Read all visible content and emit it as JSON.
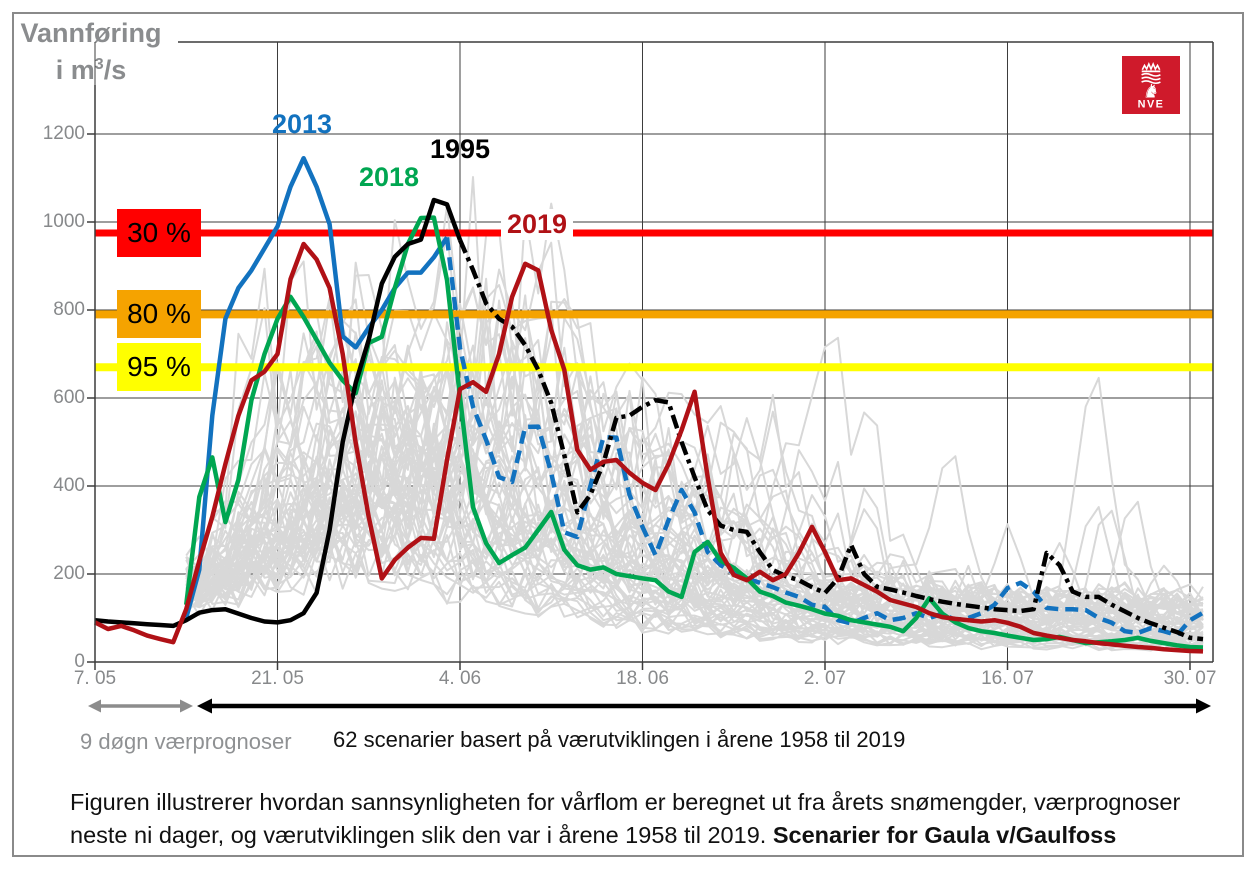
{
  "title": {
    "line1": "Vannføring",
    "unit_pre": "i m",
    "unit_sup": "3",
    "unit_post": "/s",
    "color": "#8a8c8e"
  },
  "logo": {
    "label": "NVE",
    "bg": "#cf1a2b"
  },
  "chart_data": {
    "type": "line",
    "ylabel": "Vannføring i m3/s",
    "x_axis": {
      "tick_labels": [
        "7. 05",
        "21. 05",
        "4. 06",
        "18. 06",
        "2. 07",
        "16. 07",
        "30. 07"
      ],
      "tick_days": [
        0,
        14,
        28,
        42,
        56,
        70,
        84
      ],
      "day_span": [
        0,
        85
      ]
    },
    "y_axis": {
      "ticks": [
        0,
        200,
        400,
        600,
        800,
        1000,
        1200
      ],
      "range": [
        0,
        1270
      ]
    },
    "grid": true,
    "thresholds": [
      {
        "label": "30 %",
        "value": 975,
        "color": "#ff0000",
        "width": 7
      },
      {
        "label": "80 %",
        "value": 790,
        "color": "#f5a300",
        "width": 8
      },
      {
        "label": "95 %",
        "value": 670,
        "color": "#ffff00",
        "width": 8
      }
    ],
    "series": [
      {
        "name": "2013",
        "color": "#1272bf",
        "style": "solid-then-dashed",
        "dash_from": 27,
        "dash": "13 7",
        "values": [
          null,
          null,
          null,
          null,
          null,
          null,
          null,
          100,
          210,
          560,
          780,
          850,
          890,
          940,
          990,
          1080,
          1145,
          1080,
          995,
          740,
          715,
          760,
          800,
          850,
          885,
          885,
          920,
          965,
          714,
          580,
          505,
          420,
          409,
          534,
          535,
          430,
          295,
          284,
          400,
          511,
          510,
          380,
          307,
          243,
          323,
          391,
          340,
          250,
          220,
          202,
          190,
          180,
          170,
          158,
          148,
          130,
          125,
          95,
          88,
          100,
          111,
          95,
          100,
          111,
          100,
          110,
          95,
          100,
          111,
          130,
          168,
          180,
          160,
          123,
          120,
          120,
          118,
          100,
          89,
          70,
          66,
          77,
          70,
          61,
          95,
          112
        ]
      },
      {
        "name": "2018",
        "color": "#00a651",
        "style": "solid",
        "dash_from": null,
        "dash": null,
        "values": [
          null,
          null,
          null,
          null,
          null,
          null,
          null,
          130,
          375,
          465,
          318,
          414,
          595,
          700,
          780,
          830,
          784,
          732,
          680,
          640,
          611,
          725,
          739,
          850,
          950,
          1009,
          1010,
          868,
          602,
          352,
          270,
          225,
          243,
          260,
          300,
          341,
          255,
          220,
          210,
          215,
          200,
          195,
          190,
          186,
          160,
          148,
          250,
          273,
          230,
          214,
          190,
          160,
          150,
          135,
          128,
          120,
          110,
          105,
          95,
          90,
          85,
          80,
          70,
          100,
          145,
          110,
          90,
          77,
          70,
          66,
          60,
          55,
          50,
          52,
          57,
          50,
          43,
          45,
          47,
          50,
          55,
          48,
          43,
          38,
          34,
          33
        ]
      },
      {
        "name": "1995",
        "color": "#000000",
        "style": "solid-then-dashdot",
        "dash_from": 28,
        "dash": "14 5 4 5",
        "values": [
          95,
          92,
          90,
          88,
          86,
          84,
          82,
          95,
          112,
          118,
          120,
          110,
          100,
          92,
          90,
          95,
          111,
          157,
          300,
          500,
          634,
          732,
          860,
          921,
          950,
          960,
          1050,
          1040,
          959,
          891,
          815,
          780,
          762,
          720,
          664,
          589,
          470,
          340,
          380,
          452,
          555,
          560,
          580,
          595,
          590,
          500,
          420,
          345,
          310,
          300,
          296,
          250,
          209,
          195,
          186,
          170,
          157,
          190,
          266,
          200,
          171,
          165,
          158,
          150,
          143,
          137,
          132,
          128,
          124,
          120,
          118,
          116,
          120,
          248,
          220,
          160,
          148,
          148,
          130,
          115,
          100,
          88,
          78,
          68,
          55,
          52
        ]
      },
      {
        "name": "2019",
        "color": "#b01116",
        "style": "solid",
        "dash_from": null,
        "dash": null,
        "values": [
          90,
          75,
          82,
          72,
          60,
          52,
          45,
          120,
          230,
          330,
          450,
          560,
          640,
          660,
          700,
          870,
          950,
          915,
          850,
          700,
          498,
          330,
          190,
          232,
          260,
          282,
          280,
          459,
          620,
          636,
          614,
          700,
          830,
          905,
          890,
          755,
          664,
          482,
          437,
          455,
          459,
          430,
          407,
          391,
          450,
          527,
          614,
          420,
          248,
          198,
          186,
          205,
          186,
          200,
          248,
          307,
          250,
          186,
          190,
          175,
          160,
          141,
          133,
          125,
          111,
          102,
          98,
          95,
          92,
          95,
          89,
          80,
          66,
          60,
          55,
          50,
          47,
          43,
          40,
          37,
          34,
          32,
          29,
          27,
          25,
          24
        ]
      }
    ],
    "scenarios": {
      "count": 62,
      "color": "#d8d8d8",
      "start_day": 7,
      "end_day": 85,
      "seed": 7,
      "peak_day_range": [
        11,
        37
      ],
      "peak_value_range": [
        320,
        1100
      ],
      "end_value_range": [
        30,
        140
      ],
      "description": "62 light-gray scenario traces diverging after day 7, peaking 300-1100 m3/s in late May / early June, decaying through July with sporadic spikes"
    },
    "year_label_positions": {
      "2013": [
        272,
        109
      ],
      "1995": [
        430,
        134
      ],
      "2018": [
        359,
        162
      ],
      "2019": [
        501,
        209
      ]
    }
  },
  "arrows": {
    "gray_label": "9 døgn værprognoser",
    "black_label": "62 scenarier basert på værutviklingen i årene 1958 til 2019",
    "gray_color": "#8c8c8c",
    "black_color": "#000000"
  },
  "caption": {
    "normal": "Figuren illustrerer hvordan sannsynligheten for vårflom er beregnet ut fra årets snømengder, værprognoser neste ni dager, og værutviklingen slik den var i årene 1958 til 2019. ",
    "bold": "Scenarier for Gaula v/Gaulfoss"
  }
}
